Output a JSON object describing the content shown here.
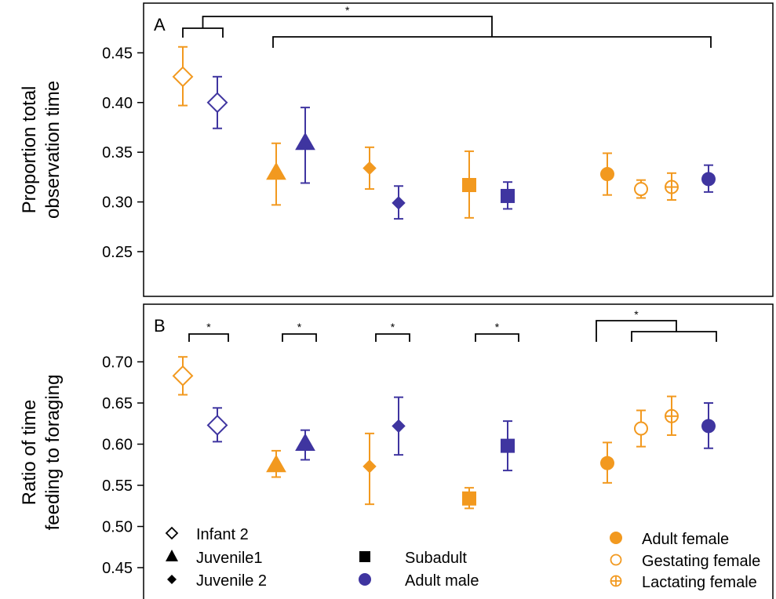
{
  "colors": {
    "orange": "#F2991F",
    "purple": "#3F35A0",
    "black": "#000000"
  },
  "chart_data": [
    {
      "type": "scatter",
      "panel_label": "A",
      "ylabel_lines": [
        "Proportion total",
        "observation time"
      ],
      "yticks": [
        "0.25",
        "0.30",
        "0.35",
        "0.40",
        "0.45"
      ],
      "ylim": [
        0.205,
        0.5
      ],
      "points": [
        {
          "group": "Infant 2",
          "sex": "female",
          "shape": "diamond-open",
          "color": "orange",
          "y": 0.426,
          "lo": 0.397,
          "hi": 0.456
        },
        {
          "group": "Infant 2",
          "sex": "male",
          "shape": "diamond-open",
          "color": "purple",
          "y": 0.4,
          "lo": 0.374,
          "hi": 0.426
        },
        {
          "group": "Juvenile1",
          "sex": "female",
          "shape": "triangle",
          "color": "orange",
          "y": 0.329,
          "lo": 0.297,
          "hi": 0.359
        },
        {
          "group": "Juvenile1",
          "sex": "male",
          "shape": "triangle",
          "color": "purple",
          "y": 0.359,
          "lo": 0.319,
          "hi": 0.395
        },
        {
          "group": "Juvenile 2",
          "sex": "female",
          "shape": "diamond",
          "color": "orange",
          "y": 0.334,
          "lo": 0.313,
          "hi": 0.355
        },
        {
          "group": "Juvenile 2",
          "sex": "male",
          "shape": "diamond",
          "color": "purple",
          "y": 0.299,
          "lo": 0.283,
          "hi": 0.316
        },
        {
          "group": "Subadult",
          "sex": "female",
          "shape": "square",
          "color": "orange",
          "y": 0.317,
          "lo": 0.284,
          "hi": 0.351
        },
        {
          "group": "Subadult",
          "sex": "male",
          "shape": "square",
          "color": "purple",
          "y": 0.306,
          "lo": 0.293,
          "hi": 0.32
        },
        {
          "group": "Adult female",
          "sex": "female",
          "shape": "circle",
          "color": "orange",
          "y": 0.328,
          "lo": 0.307,
          "hi": 0.349
        },
        {
          "group": "Gestating female",
          "sex": "female",
          "shape": "circle-open",
          "color": "orange",
          "y": 0.313,
          "lo": 0.304,
          "hi": 0.322
        },
        {
          "group": "Lactating female",
          "sex": "female",
          "shape": "circle-plus",
          "color": "orange",
          "y": 0.315,
          "lo": 0.302,
          "hi": 0.329
        },
        {
          "group": "Adult male",
          "sex": "male",
          "shape": "circle",
          "color": "purple",
          "y": 0.323,
          "lo": 0.31,
          "hi": 0.337
        }
      ],
      "significance": [
        {
          "label": "*",
          "type": "nested",
          "left_pair": [
            0,
            1
          ],
          "right_pair": [
            2,
            11
          ]
        }
      ]
    },
    {
      "type": "scatter",
      "panel_label": "B",
      "ylabel_lines": [
        "Ratio of time",
        "feeding to foraging"
      ],
      "yticks": [
        "0.45",
        "0.50",
        "0.55",
        "0.60",
        "0.65",
        "0.70"
      ],
      "ylim": [
        0.41,
        0.77
      ],
      "points": [
        {
          "group": "Infant 2",
          "sex": "female",
          "shape": "diamond-open",
          "color": "orange",
          "y": 0.683,
          "lo": 0.66,
          "hi": 0.706
        },
        {
          "group": "Infant 2",
          "sex": "male",
          "shape": "diamond-open",
          "color": "purple",
          "y": 0.623,
          "lo": 0.603,
          "hi": 0.644
        },
        {
          "group": "Juvenile1",
          "sex": "female",
          "shape": "triangle",
          "color": "orange",
          "y": 0.574,
          "lo": 0.56,
          "hi": 0.592
        },
        {
          "group": "Juvenile1",
          "sex": "male",
          "shape": "triangle",
          "color": "purple",
          "y": 0.6,
          "lo": 0.581,
          "hi": 0.617
        },
        {
          "group": "Juvenile 2",
          "sex": "female",
          "shape": "diamond",
          "color": "orange",
          "y": 0.573,
          "lo": 0.527,
          "hi": 0.613
        },
        {
          "group": "Juvenile 2",
          "sex": "male",
          "shape": "diamond",
          "color": "purple",
          "y": 0.622,
          "lo": 0.587,
          "hi": 0.657
        },
        {
          "group": "Subadult",
          "sex": "female",
          "shape": "square",
          "color": "orange",
          "y": 0.534,
          "lo": 0.522,
          "hi": 0.547
        },
        {
          "group": "Subadult",
          "sex": "male",
          "shape": "square",
          "color": "purple",
          "y": 0.598,
          "lo": 0.568,
          "hi": 0.628
        },
        {
          "group": "Adult female",
          "sex": "female",
          "shape": "circle",
          "color": "orange",
          "y": 0.577,
          "lo": 0.553,
          "hi": 0.602
        },
        {
          "group": "Gestating female",
          "sex": "female",
          "shape": "circle-open",
          "color": "orange",
          "y": 0.619,
          "lo": 0.597,
          "hi": 0.641
        },
        {
          "group": "Lactating female",
          "sex": "female",
          "shape": "circle-plus",
          "color": "orange",
          "y": 0.634,
          "lo": 0.611,
          "hi": 0.658
        },
        {
          "group": "Adult male",
          "sex": "male",
          "shape": "circle",
          "color": "purple",
          "y": 0.622,
          "lo": 0.595,
          "hi": 0.65
        }
      ],
      "significance": [
        {
          "label": "*",
          "type": "pair",
          "pair": [
            0,
            1
          ]
        },
        {
          "label": "*",
          "type": "pair",
          "pair": [
            2,
            3
          ]
        },
        {
          "label": "*",
          "type": "pair",
          "pair": [
            4,
            5
          ]
        },
        {
          "label": "*",
          "type": "pair",
          "pair": [
            6,
            7
          ]
        },
        {
          "label": "*",
          "type": "group_vs_one",
          "group": [
            8,
            9,
            10
          ],
          "one": 11
        }
      ],
      "legend": [
        {
          "label": "Infant 2",
          "shape": "diamond-open",
          "column": 1
        },
        {
          "label": "Juvenile1",
          "shape": "triangle",
          "column": 1
        },
        {
          "label": "Juvenile 2",
          "shape": "diamond",
          "column": 1
        },
        {
          "label": "Subadult",
          "shape": "square",
          "column": 2,
          "color": "black"
        },
        {
          "label": "Adult male",
          "shape": "circle",
          "column": 2,
          "color": "purple"
        },
        {
          "label": "Adult female",
          "shape": "circle",
          "column": 3,
          "color": "orange"
        },
        {
          "label": "Gestating female",
          "shape": "circle-open",
          "column": 3,
          "color": "orange"
        },
        {
          "label": "Lactating female",
          "shape": "circle-plus",
          "column": 3,
          "color": "orange"
        }
      ]
    }
  ]
}
